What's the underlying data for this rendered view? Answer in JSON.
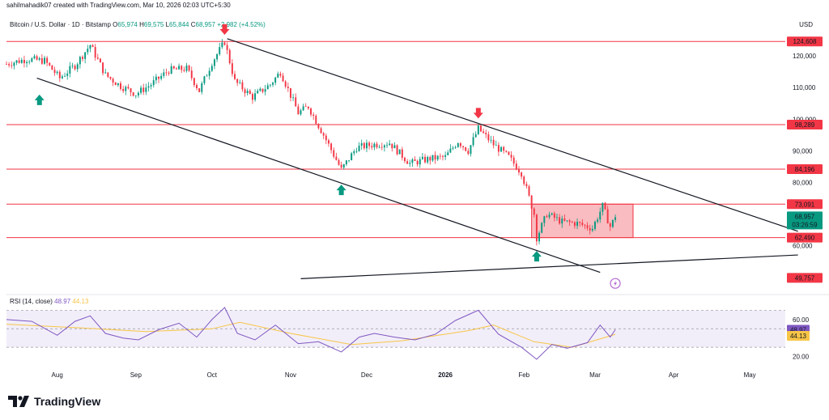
{
  "header": {
    "attribution": "sahilmahadik07 created with TradingView.com, Mar 10, 2026 02:03 UTC+5:30",
    "symbol": "Bitcoin / U.S. Dollar · 1D · Bitstamp",
    "open_label": "O",
    "open": "65,974",
    "high_label": "H",
    "high": "69,575",
    "low_label": "L",
    "low": "65,844",
    "close_label": "C",
    "close": "68,957",
    "change": "+2,982 (+4.52%)",
    "currency": "USD"
  },
  "footer": {
    "brand": "TradingView"
  },
  "colors": {
    "up": "#089981",
    "down": "#f23645",
    "level_line": "#f23645",
    "range_fill": "#f7a5ab",
    "rsi": "#7e57c2",
    "rsi_ma": "#f7c547",
    "rsi_band": "#ede7f6",
    "trend_line": "#131722",
    "green_label": "#089981"
  },
  "chart_data": [
    {
      "type": "candlestick",
      "title": "Bitcoin / U.S. Dollar · 1D · Bitstamp",
      "ylim": [
        46000,
        128000
      ],
      "y_ticks": [
        60000,
        70000,
        80000,
        90000,
        100000,
        110000,
        120000
      ],
      "y_tick_labels": [
        "60,000",
        "70,000",
        "80,000",
        "90,000",
        "100,000",
        "110,000",
        "120,000"
      ],
      "x_date_range": [
        "2025-07-12",
        "2026-05-15"
      ],
      "x_labels": [
        {
          "date": "2025-08-01",
          "text": "Aug"
        },
        {
          "date": "2025-09-01",
          "text": "Sep"
        },
        {
          "date": "2025-10-01",
          "text": "Oct"
        },
        {
          "date": "2025-11-01",
          "text": "Nov"
        },
        {
          "date": "2025-12-01",
          "text": "Dec"
        },
        {
          "date": "2026-01-01",
          "text": "2026"
        },
        {
          "date": "2026-02-01",
          "text": "Feb"
        },
        {
          "date": "2026-03-01",
          "text": "Mar"
        },
        {
          "date": "2026-04-01",
          "text": "Apr"
        },
        {
          "date": "2026-05-01",
          "text": "May"
        }
      ],
      "price_path": [
        [
          "2025-07-12",
          117500
        ],
        [
          "2025-07-20",
          119000
        ],
        [
          "2025-07-27",
          118500
        ],
        [
          "2025-08-02",
          113000
        ],
        [
          "2025-08-08",
          117000
        ],
        [
          "2025-08-14",
          123500
        ],
        [
          "2025-08-20",
          114000
        ],
        [
          "2025-08-26",
          110500
        ],
        [
          "2025-09-01",
          108000
        ],
        [
          "2025-09-07",
          111000
        ],
        [
          "2025-09-14",
          115500
        ],
        [
          "2025-09-21",
          116000
        ],
        [
          "2025-09-26",
          109000
        ],
        [
          "2025-10-01",
          118000
        ],
        [
          "2025-10-06",
          124500
        ],
        [
          "2025-10-10",
          112000
        ],
        [
          "2025-10-17",
          107000
        ],
        [
          "2025-10-24",
          111000
        ],
        [
          "2025-10-28",
          115000
        ],
        [
          "2025-11-04",
          102000
        ],
        [
          "2025-11-08",
          104000
        ],
        [
          "2025-11-14",
          95000
        ],
        [
          "2025-11-21",
          84000
        ],
        [
          "2025-11-27",
          91000
        ],
        [
          "2025-12-04",
          92000
        ],
        [
          "2025-12-10",
          92500
        ],
        [
          "2025-12-18",
          86000
        ],
        [
          "2025-12-26",
          87500
        ],
        [
          "2026-01-01",
          88000
        ],
        [
          "2026-01-06",
          93000
        ],
        [
          "2026-01-10",
          90000
        ],
        [
          "2026-01-14",
          97000
        ],
        [
          "2026-01-20",
          92000
        ],
        [
          "2026-01-26",
          88000
        ],
        [
          "2026-01-31",
          83000
        ],
        [
          "2026-02-05",
          70000
        ],
        [
          "2026-02-06",
          62500
        ],
        [
          "2026-02-10",
          70000
        ],
        [
          "2026-02-16",
          67500
        ],
        [
          "2026-02-22",
          67000
        ],
        [
          "2026-02-28",
          65500
        ],
        [
          "2026-03-04",
          72500
        ],
        [
          "2026-03-07",
          66000
        ],
        [
          "2026-03-09",
          68957
        ]
      ],
      "annotations": {
        "horizontal_levels": [
          124608,
          98289,
          84196,
          73091,
          62490,
          49757
        ],
        "level_labels": [
          "124,608",
          "98,289",
          "84,196",
          "73,091",
          "62,490",
          "49,757"
        ],
        "current_price_label": "68,957",
        "countdown": "03:26:59",
        "range_box": {
          "from": "2026-02-04",
          "to": "2026-03-16",
          "low": 62490,
          "high": 73091
        },
        "upper_trendline": [
          [
            "2025-10-07",
            125500
          ],
          [
            "2026-05-20",
            64500
          ]
        ],
        "lower_trendline": [
          [
            "2025-07-24",
            113000
          ],
          [
            "2026-03-03",
            51500
          ]
        ],
        "extra_line": [
          [
            "2025-11-05",
            49500
          ],
          [
            "2026-05-20",
            57000
          ]
        ],
        "down_arrows": [
          [
            "2025-10-06",
            128000
          ],
          [
            "2026-01-14",
            101500
          ]
        ],
        "up_arrows": [
          [
            "2025-07-25",
            106500
          ],
          [
            "2025-11-21",
            78000
          ],
          [
            "2026-02-06",
            57000
          ]
        ]
      }
    },
    {
      "type": "line",
      "title": "RSI (14, close)",
      "label": "RSI (14, close)",
      "rsi_value": "48.97",
      "ma_value": "44.13",
      "ylim": [
        10,
        80
      ],
      "y_tick_labels": [
        "60.00",
        "20.00"
      ],
      "band": [
        30,
        70
      ],
      "rsi_path": [
        [
          "2025-07-12",
          60
        ],
        [
          "2025-07-22",
          58
        ],
        [
          "2025-08-01",
          43
        ],
        [
          "2025-08-08",
          58
        ],
        [
          "2025-08-14",
          64
        ],
        [
          "2025-08-20",
          45
        ],
        [
          "2025-08-27",
          40
        ],
        [
          "2025-09-02",
          38
        ],
        [
          "2025-09-10",
          49
        ],
        [
          "2025-09-18",
          56
        ],
        [
          "2025-09-25",
          41
        ],
        [
          "2025-10-01",
          60
        ],
        [
          "2025-10-06",
          73
        ],
        [
          "2025-10-11",
          45
        ],
        [
          "2025-10-18",
          38
        ],
        [
          "2025-10-26",
          54
        ],
        [
          "2025-11-04",
          34
        ],
        [
          "2025-11-12",
          36
        ],
        [
          "2025-11-21",
          25
        ],
        [
          "2025-11-28",
          41
        ],
        [
          "2025-12-04",
          45
        ],
        [
          "2025-12-12",
          41
        ],
        [
          "2025-12-20",
          38
        ],
        [
          "2025-12-28",
          44
        ],
        [
          "2026-01-05",
          59
        ],
        [
          "2026-01-14",
          70
        ],
        [
          "2026-01-22",
          44
        ],
        [
          "2026-01-31",
          30
        ],
        [
          "2026-02-06",
          17
        ],
        [
          "2026-02-12",
          33
        ],
        [
          "2026-02-18",
          29
        ],
        [
          "2026-02-26",
          35
        ],
        [
          "2026-03-03",
          54
        ],
        [
          "2026-03-07",
          41
        ],
        [
          "2026-03-09",
          49
        ]
      ],
      "ma_path": [
        [
          "2025-07-12",
          55
        ],
        [
          "2025-08-10",
          51
        ],
        [
          "2025-09-05",
          47
        ],
        [
          "2025-10-01",
          50
        ],
        [
          "2025-10-12",
          57
        ],
        [
          "2025-11-01",
          45
        ],
        [
          "2025-11-25",
          33
        ],
        [
          "2025-12-15",
          37
        ],
        [
          "2026-01-10",
          48
        ],
        [
          "2026-01-20",
          54
        ],
        [
          "2026-02-05",
          36
        ],
        [
          "2026-02-20",
          30
        ],
        [
          "2026-03-09",
          44
        ]
      ]
    }
  ]
}
